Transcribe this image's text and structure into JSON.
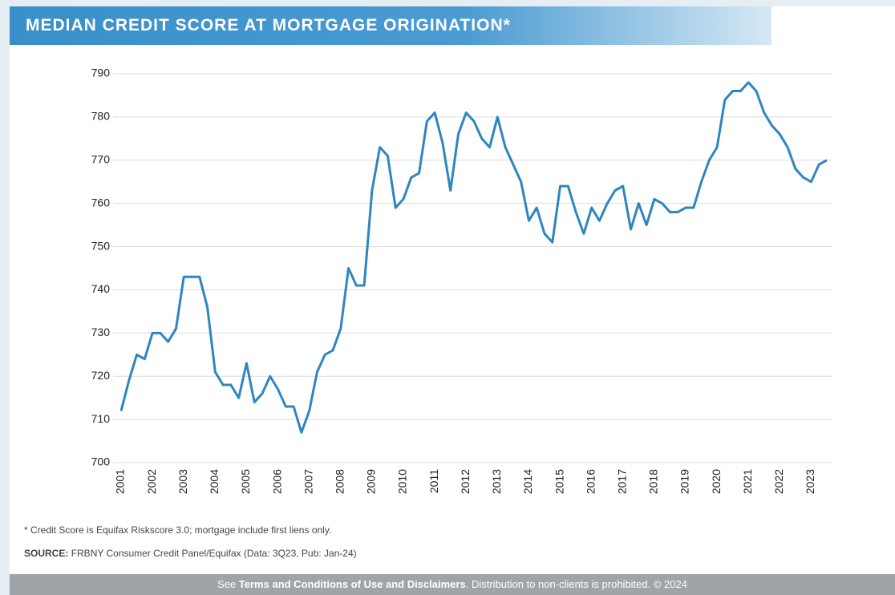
{
  "chart_data": {
    "type": "line",
    "title": "MEDIAN CREDIT SCORE AT MORTGAGE ORIGINATION*",
    "categories": [
      "2001",
      null,
      null,
      null,
      "2002",
      null,
      null,
      null,
      "2003",
      null,
      null,
      null,
      "2004",
      null,
      null,
      null,
      "2005",
      null,
      null,
      null,
      "2006",
      null,
      null,
      null,
      "2007",
      null,
      null,
      null,
      "2008",
      null,
      null,
      null,
      "2009",
      null,
      null,
      null,
      "2010",
      null,
      null,
      null,
      "2011",
      null,
      null,
      null,
      "2012",
      null,
      null,
      null,
      "2013",
      null,
      null,
      null,
      "2014",
      null,
      null,
      null,
      "2015",
      null,
      null,
      null,
      "2016",
      null,
      null,
      null,
      "2017",
      null,
      null,
      null,
      "2018",
      null,
      null,
      null,
      "2019",
      null,
      null,
      null,
      "2020",
      null,
      null,
      null,
      "2021",
      null,
      null,
      null,
      "2022",
      null,
      null,
      null,
      "2023",
      null,
      null
    ],
    "values": [
      712,
      719,
      725,
      724,
      730,
      730,
      728,
      731,
      743,
      743,
      743,
      736,
      721,
      718,
      718,
      715,
      723,
      714,
      716,
      720,
      717,
      713,
      713,
      707,
      712,
      721,
      725,
      726,
      731,
      745,
      741,
      741,
      763,
      773,
      771,
      759,
      761,
      766,
      767,
      779,
      781,
      774,
      763,
      776,
      781,
      779,
      775,
      773,
      780,
      773,
      769,
      765,
      756,
      759,
      753,
      751,
      764,
      764,
      758,
      753,
      759,
      756,
      760,
      763,
      764,
      754,
      760,
      755,
      761,
      760,
      758,
      758,
      759,
      759,
      765,
      770,
      773,
      784,
      786,
      786,
      788,
      786,
      781,
      778,
      776,
      773,
      768,
      766,
      765,
      769,
      770
    ],
    "color": "#2e86c1",
    "ylim": [
      700,
      790
    ],
    "yticks": [
      700,
      710,
      720,
      730,
      740,
      750,
      760,
      770,
      780,
      790
    ],
    "grid": true
  },
  "notes": {
    "footnote": "* Credit Score is Equifax Riskscore 3.0; mortgage include first liens only.",
    "source_label": "SOURCE:",
    "source_text": "FRBNY Consumer Credit Panel/Equifax (Data: 3Q23, Pub: Jan-24)"
  },
  "footer": {
    "prefix": "See",
    "link": "Terms and Conditions of Use and Disclaimers",
    "suffix": ". Distribution to non-clients is prohibited. © 2024"
  }
}
